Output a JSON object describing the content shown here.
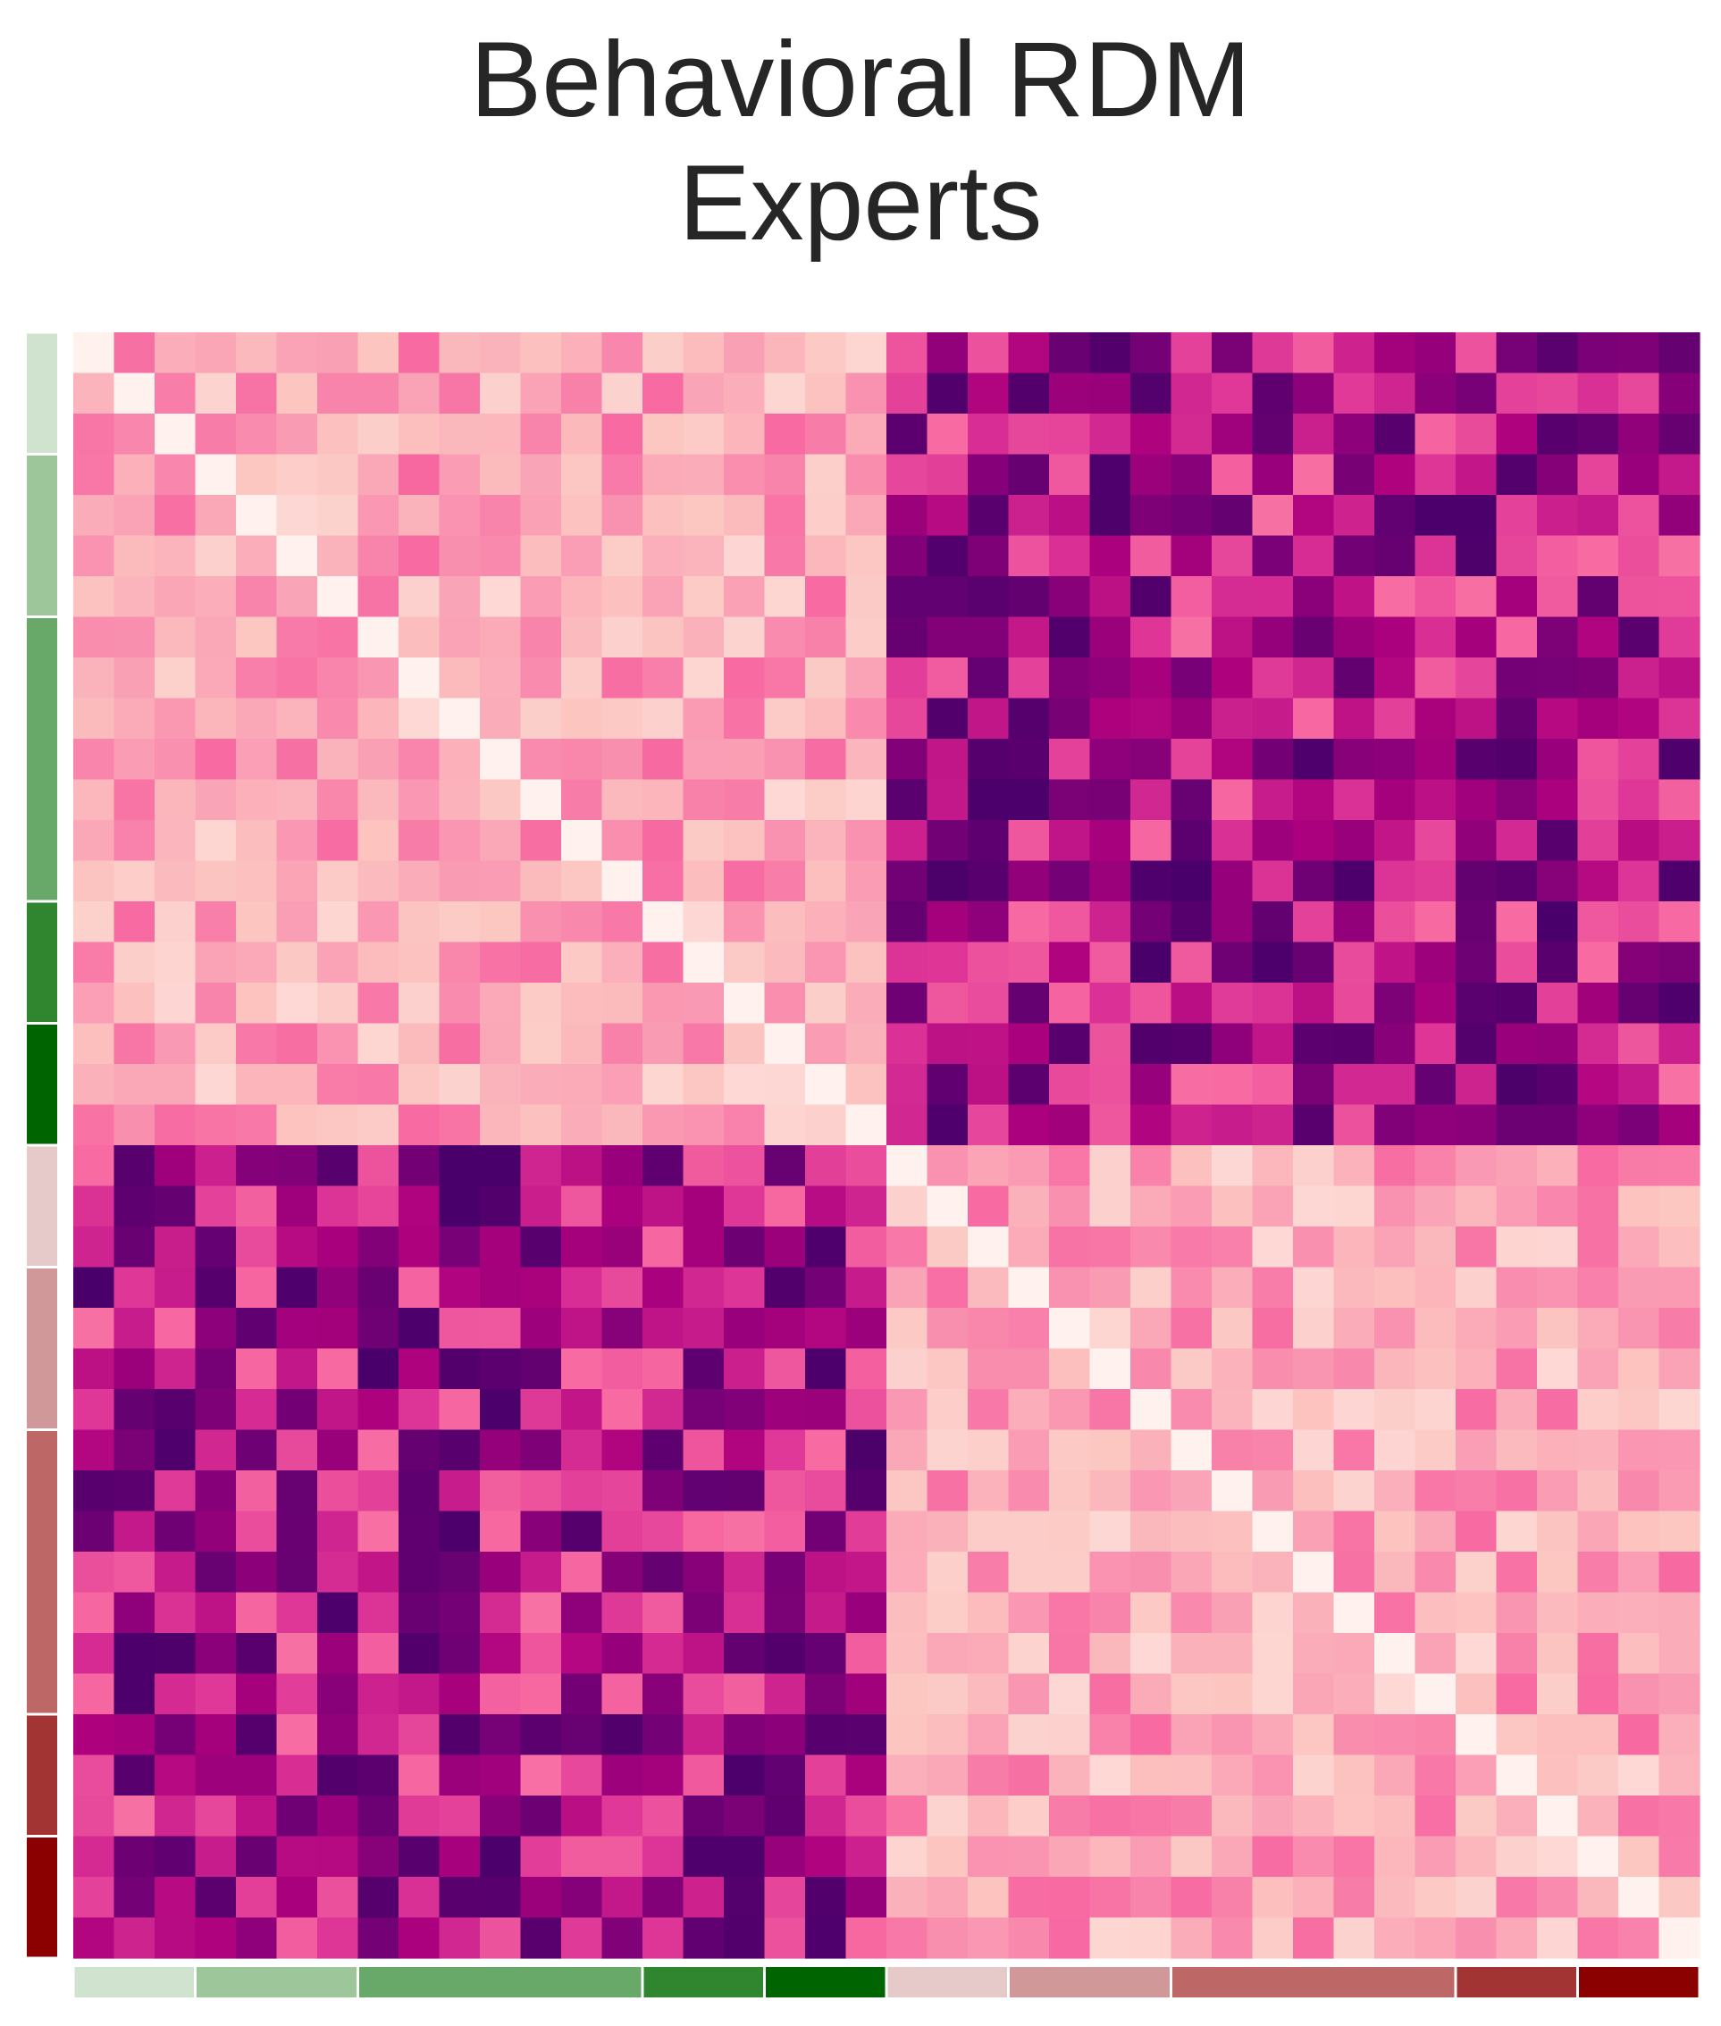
{
  "title_lines": [
    "Behavioral RDM",
    "Experts"
  ],
  "chart_data": {
    "type": "heatmap",
    "title": "Behavioral RDM\nExperts",
    "n": 40,
    "color_scale": {
      "name": "RdPu",
      "stops": [
        "#fff7f3",
        "#fde0dd",
        "#fcc5c0",
        "#fa9fb5",
        "#f768a1",
        "#dd3497",
        "#ae017e",
        "#7a0177",
        "#49006a"
      ]
    },
    "category_bar_colors": [
      "#cfe3cf",
      "#9dc69a",
      "#68a868",
      "#2f862f",
      "#006400",
      "#e6c9c9",
      "#d09898",
      "#bd6767",
      "#a23434",
      "#8b0000"
    ],
    "category_sizes": [
      3,
      4,
      7,
      3,
      3,
      3,
      4,
      7,
      3,
      3
    ],
    "grid": false,
    "legend": "none"
  }
}
